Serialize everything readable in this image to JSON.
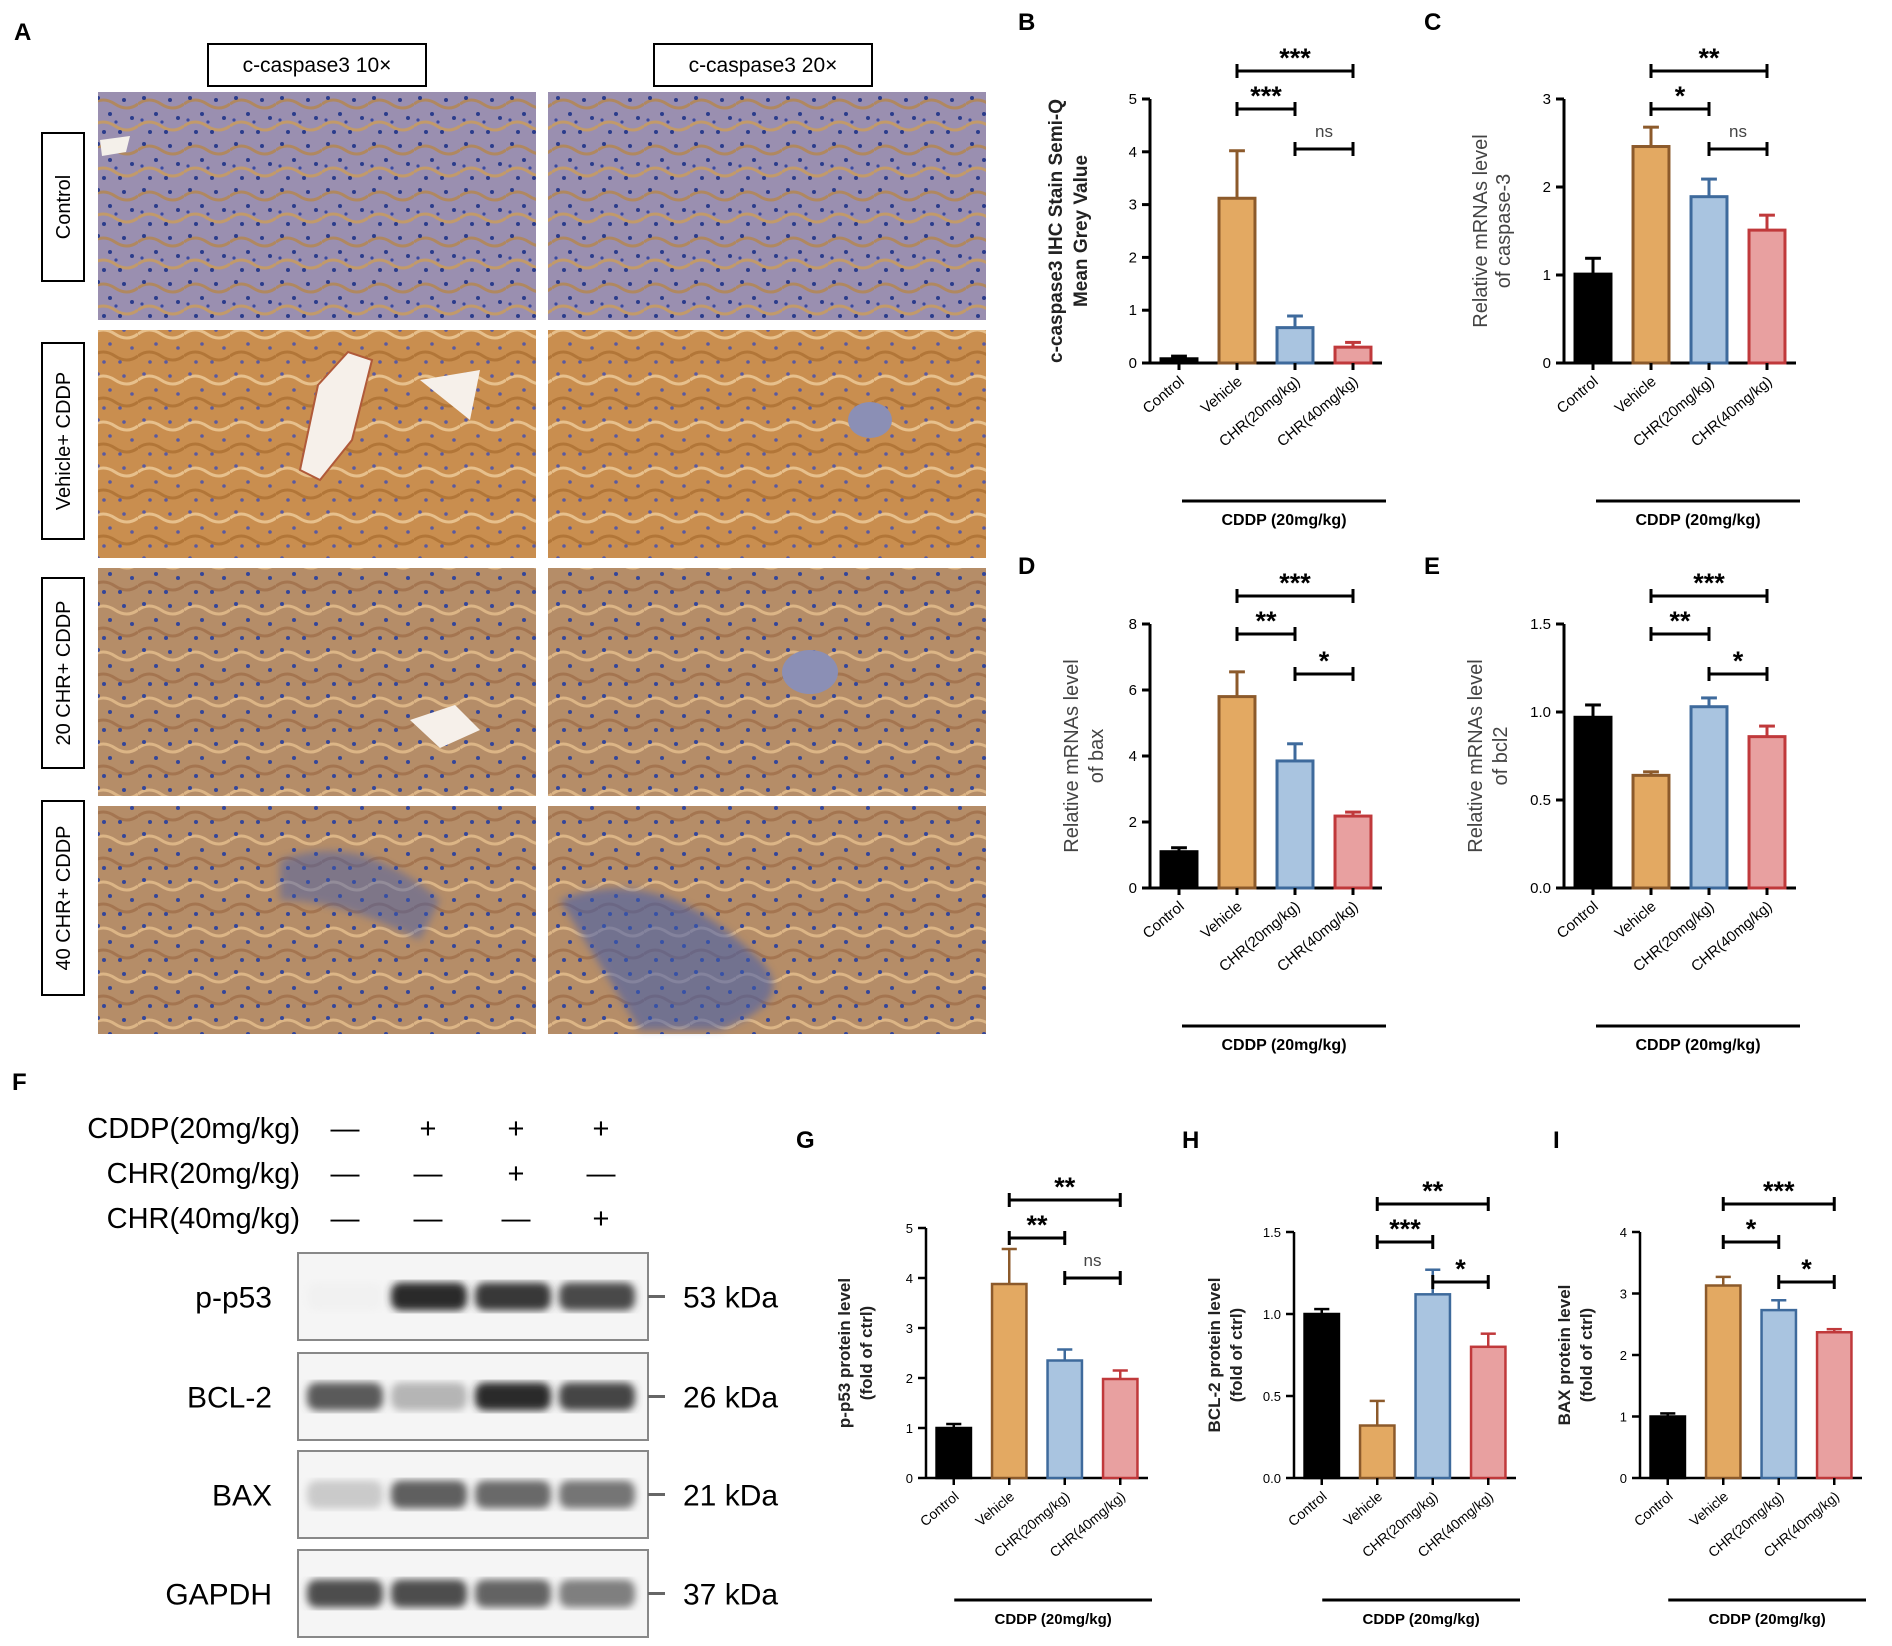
{
  "panel_a": {
    "letter": "A",
    "col_headers": [
      "c-caspase3 10×",
      "c-caspase3 20×"
    ],
    "row_labels": [
      "Control",
      "Vehicle+ CDDP",
      "20 CHR+ CDDP",
      "40 CHR+ CDDP"
    ]
  },
  "panel_f": {
    "letter": "F",
    "treatments": [
      {
        "label": "CDDP(20mg/kg)",
        "marks": [
          "—",
          "+",
          "+",
          "+"
        ]
      },
      {
        "label": "CHR(20mg/kg)",
        "marks": [
          "—",
          "—",
          "+",
          "—"
        ]
      },
      {
        "label": "CHR(40mg/kg)",
        "marks": [
          "—",
          "—",
          "—",
          "+"
        ]
      }
    ],
    "bands": [
      {
        "name": "p-p53",
        "size": "53 kDa",
        "intensity": [
          0.02,
          0.95,
          0.88,
          0.8
        ]
      },
      {
        "name": "BCL-2",
        "size": "26 kDa",
        "intensity": [
          0.72,
          0.3,
          0.95,
          0.82
        ]
      },
      {
        "name": "BAX",
        "size": "21 kDa",
        "intensity": [
          0.2,
          0.7,
          0.65,
          0.6
        ]
      },
      {
        "name": "GAPDH",
        "size": "37 kDa",
        "intensity": [
          0.78,
          0.78,
          0.68,
          0.55
        ]
      }
    ]
  },
  "colors": {
    "control": "#000000",
    "vehicle": "#E3A962",
    "chr20": "#A9C4E0",
    "chr40": "#E8A0A0",
    "vehicle_edge": "#8C5A2B",
    "chr20_edge": "#3E6A9C",
    "chr40_edge": "#C0393B"
  },
  "chart_data": [
    {
      "letter": "B",
      "type": "bar",
      "categories": [
        "Control",
        "Vehicle",
        "CHR(20mg/kg)",
        "CHR(40mg/kg)"
      ],
      "values": [
        0.08,
        3.12,
        0.67,
        0.3
      ],
      "errors": [
        0.05,
        0.9,
        0.22,
        0.09
      ],
      "ylabel": [
        "c-caspase3 IHC Stain Semi-Q",
        "Mean Grey Value"
      ],
      "yticks": [
        "0",
        "1",
        "2",
        "3",
        "4",
        "5"
      ],
      "ylim": [
        0,
        5
      ],
      "group_label": "CDDP (20mg/kg)",
      "comparisons": [
        {
          "from": 1,
          "to": 3,
          "label": "***"
        },
        {
          "from": 1,
          "to": 2,
          "label": "***"
        },
        {
          "from": 2,
          "to": 3,
          "label": "ns"
        }
      ]
    },
    {
      "letter": "C",
      "type": "bar",
      "categories": [
        "Control",
        "Vehicle",
        "CHR(20mg/kg)",
        "CHR(40mg/kg)"
      ],
      "values": [
        1.01,
        2.46,
        1.89,
        1.51
      ],
      "errors": [
        0.18,
        0.22,
        0.2,
        0.17
      ],
      "ylabel": [
        "Relative mRNAs level",
        "of caspase-3"
      ],
      "yticks": [
        "0",
        "1",
        "2",
        "3"
      ],
      "ylim": [
        0,
        3
      ],
      "group_label": "CDDP (20mg/kg)",
      "comparisons": [
        {
          "from": 1,
          "to": 3,
          "label": "**"
        },
        {
          "from": 1,
          "to": 2,
          "label": "*"
        },
        {
          "from": 2,
          "to": 3,
          "label": "ns"
        }
      ]
    },
    {
      "letter": "D",
      "type": "bar",
      "categories": [
        "Control",
        "Vehicle",
        "CHR(20mg/kg)",
        "CHR(40mg/kg)"
      ],
      "values": [
        1.1,
        5.8,
        3.85,
        2.18
      ],
      "errors": [
        0.12,
        0.75,
        0.52,
        0.12
      ],
      "ylabel": [
        "Relative mRNAs level",
        "of bax"
      ],
      "yticks": [
        "0",
        "2",
        "4",
        "6",
        "8"
      ],
      "ylim": [
        0,
        8
      ],
      "group_label": "CDDP (20mg/kg)",
      "comparisons": [
        {
          "from": 1,
          "to": 3,
          "label": "***"
        },
        {
          "from": 1,
          "to": 2,
          "label": "**"
        },
        {
          "from": 2,
          "to": 3,
          "label": "*"
        }
      ]
    },
    {
      "letter": "E",
      "type": "bar",
      "categories": [
        "Control",
        "Vehicle",
        "CHR(20mg/kg)",
        "CHR(40mg/kg)"
      ],
      "values": [
        0.97,
        0.64,
        1.03,
        0.86
      ],
      "errors": [
        0.07,
        0.02,
        0.05,
        0.06
      ],
      "ylabel": [
        "Relative mRNAs level",
        "of bcl2"
      ],
      "yticks": [
        "0.0",
        "0.5",
        "1.0",
        "1.5"
      ],
      "ylim": [
        0,
        1.5
      ],
      "group_label": "CDDP (20mg/kg)",
      "comparisons": [
        {
          "from": 1,
          "to": 3,
          "label": "***"
        },
        {
          "from": 1,
          "to": 2,
          "label": "**"
        },
        {
          "from": 2,
          "to": 3,
          "label": "*"
        }
      ]
    },
    {
      "letter": "G",
      "type": "bar",
      "categories": [
        "Control",
        "Vehicle",
        "CHR(20mg/kg)",
        "CHR(40mg/kg)"
      ],
      "values": [
        1.0,
        3.88,
        2.35,
        1.98
      ],
      "errors": [
        0.08,
        0.7,
        0.22,
        0.17
      ],
      "ylabel": [
        "p-p53 protein level",
        "(fold of ctrl)"
      ],
      "yticks": [
        "0",
        "1",
        "2",
        "3",
        "4",
        "5"
      ],
      "ylim": [
        0,
        5
      ],
      "group_label": "CDDP (20mg/kg)",
      "comparisons": [
        {
          "from": 1,
          "to": 3,
          "label": "**"
        },
        {
          "from": 1,
          "to": 2,
          "label": "**"
        },
        {
          "from": 2,
          "to": 3,
          "label": "ns"
        }
      ]
    },
    {
      "letter": "H",
      "type": "bar",
      "categories": [
        "Control",
        "Vehicle",
        "CHR(20mg/kg)",
        "CHR(40mg/kg)"
      ],
      "values": [
        1.0,
        0.32,
        1.12,
        0.8
      ],
      "errors": [
        0.03,
        0.15,
        0.15,
        0.08
      ],
      "ylabel": [
        "BCL-2 protein level",
        "(fold of ctrl)"
      ],
      "yticks": [
        "0.0",
        "0.5",
        "1.0",
        "1.5"
      ],
      "ylim": [
        0,
        1.5
      ],
      "group_label": "CDDP (20mg/kg)",
      "comparisons": [
        {
          "from": 1,
          "to": 3,
          "label": "**"
        },
        {
          "from": 1,
          "to": 2,
          "label": "***"
        },
        {
          "from": 2,
          "to": 3,
          "label": "*"
        }
      ]
    },
    {
      "letter": "I",
      "type": "bar",
      "categories": [
        "Control",
        "Vehicle",
        "CHR(20mg/kg)",
        "CHR(40mg/kg)"
      ],
      "values": [
        1.0,
        3.13,
        2.73,
        2.37
      ],
      "errors": [
        0.05,
        0.14,
        0.16,
        0.05
      ],
      "ylabel": [
        "BAX protein level",
        "(fold of ctrl)"
      ],
      "yticks": [
        "0",
        "1",
        "2",
        "3",
        "4"
      ],
      "ylim": [
        0,
        4
      ],
      "group_label": "CDDP (20mg/kg)",
      "comparisons": [
        {
          "from": 1,
          "to": 3,
          "label": "***"
        },
        {
          "from": 1,
          "to": 2,
          "label": "*"
        },
        {
          "from": 2,
          "to": 3,
          "label": "*"
        }
      ]
    }
  ]
}
